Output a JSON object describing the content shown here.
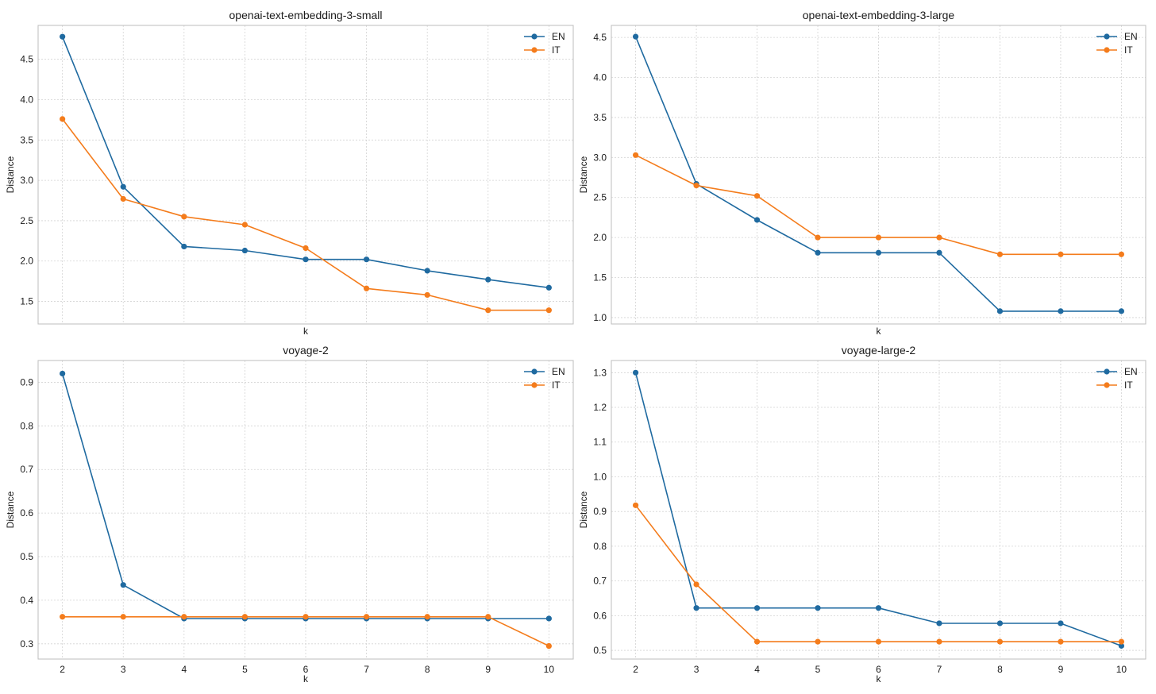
{
  "chart_data": [
    {
      "type": "line",
      "title": "openai-text-embedding-3-small",
      "xlabel": "k",
      "ylabel": "Distance",
      "x": [
        2,
        3,
        4,
        5,
        6,
        7,
        8,
        9,
        10
      ],
      "xlim": [
        1.6,
        10.4
      ],
      "ylim": [
        1.22,
        4.92
      ],
      "xticks": [],
      "yticks": [
        1.5,
        2.0,
        2.5,
        3.0,
        3.5,
        4.0,
        4.5
      ],
      "ytick_labels": [
        "1.5",
        "2.0",
        "2.5",
        "3.0",
        "3.5",
        "4.0",
        "4.5"
      ],
      "grid": true,
      "legend": "top-right",
      "series": [
        {
          "name": "EN",
          "color": "#1f6aa0",
          "values": [
            4.78,
            2.92,
            2.18,
            2.13,
            2.02,
            2.02,
            1.88,
            1.77,
            1.67
          ]
        },
        {
          "name": "IT",
          "color": "#f47c1c",
          "values": [
            3.76,
            2.77,
            2.55,
            2.45,
            2.16,
            1.66,
            1.58,
            1.39,
            1.39
          ]
        }
      ]
    },
    {
      "type": "line",
      "title": "openai-text-embedding-3-large",
      "xlabel": "k",
      "ylabel": "Distance",
      "x": [
        2,
        3,
        4,
        5,
        6,
        7,
        8,
        9,
        10
      ],
      "xlim": [
        1.6,
        10.4
      ],
      "ylim": [
        0.92,
        4.65
      ],
      "xticks": [],
      "yticks": [
        1.0,
        1.5,
        2.0,
        2.5,
        3.0,
        3.5,
        4.0,
        4.5
      ],
      "ytick_labels": [
        "1.0",
        "1.5",
        "2.0",
        "2.5",
        "3.0",
        "3.5",
        "4.0",
        "4.5"
      ],
      "grid": true,
      "legend": "top-right",
      "series": [
        {
          "name": "EN",
          "color": "#1f6aa0",
          "values": [
            4.51,
            2.67,
            2.22,
            1.81,
            1.81,
            1.81,
            1.08,
            1.08,
            1.08
          ]
        },
        {
          "name": "IT",
          "color": "#f47c1c",
          "values": [
            3.03,
            2.65,
            2.52,
            2.0,
            2.0,
            2.0,
            1.79,
            1.79,
            1.79
          ]
        }
      ]
    },
    {
      "type": "line",
      "title": "voyage-2",
      "xlabel": "k",
      "ylabel": "Distance",
      "x": [
        2,
        3,
        4,
        5,
        6,
        7,
        8,
        9,
        10
      ],
      "xlim": [
        1.6,
        10.4
      ],
      "ylim": [
        0.265,
        0.95
      ],
      "xticks": [
        2,
        3,
        4,
        5,
        6,
        7,
        8,
        9,
        10
      ],
      "xtick_labels": [
        "2",
        "3",
        "4",
        "5",
        "6",
        "7",
        "8",
        "9",
        "10"
      ],
      "yticks": [
        0.3,
        0.4,
        0.5,
        0.6,
        0.7,
        0.8,
        0.9
      ],
      "ytick_labels": [
        "0.3",
        "0.4",
        "0.5",
        "0.6",
        "0.7",
        "0.8",
        "0.9"
      ],
      "grid": true,
      "legend": "top-right",
      "series": [
        {
          "name": "EN",
          "color": "#1f6aa0",
          "values": [
            0.92,
            0.435,
            0.358,
            0.358,
            0.358,
            0.358,
            0.358,
            0.358,
            0.358
          ]
        },
        {
          "name": "IT",
          "color": "#f47c1c",
          "values": [
            0.362,
            0.362,
            0.362,
            0.362,
            0.362,
            0.362,
            0.362,
            0.362,
            0.295
          ]
        }
      ]
    },
    {
      "type": "line",
      "title": "voyage-large-2",
      "xlabel": "k",
      "ylabel": "Distance",
      "x": [
        2,
        3,
        4,
        5,
        6,
        7,
        8,
        9,
        10
      ],
      "xlim": [
        1.6,
        10.4
      ],
      "ylim": [
        0.475,
        1.335
      ],
      "xticks": [
        2,
        3,
        4,
        5,
        6,
        7,
        8,
        9,
        10
      ],
      "xtick_labels": [
        "2",
        "3",
        "4",
        "5",
        "6",
        "7",
        "8",
        "9",
        "10"
      ],
      "yticks": [
        0.5,
        0.6,
        0.7,
        0.8,
        0.9,
        1.0,
        1.1,
        1.2,
        1.3
      ],
      "ytick_labels": [
        "0.5",
        "0.6",
        "0.7",
        "0.8",
        "0.9",
        "1.0",
        "1.1",
        "1.2",
        "1.3"
      ],
      "grid": true,
      "legend": "top-right",
      "series": [
        {
          "name": "EN",
          "color": "#1f6aa0",
          "values": [
            1.3,
            0.622,
            0.622,
            0.622,
            0.622,
            0.578,
            0.578,
            0.578,
            0.513
          ]
        },
        {
          "name": "IT",
          "color": "#f47c1c",
          "values": [
            0.918,
            0.69,
            0.525,
            0.525,
            0.525,
            0.525,
            0.525,
            0.525,
            0.525
          ]
        }
      ]
    }
  ]
}
